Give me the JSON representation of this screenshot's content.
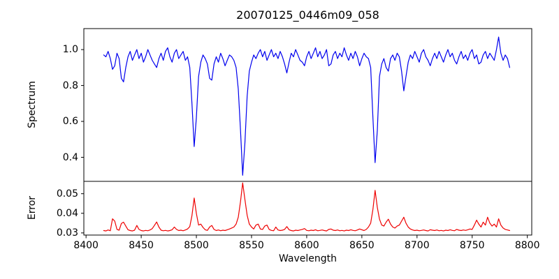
{
  "chart_data": {
    "type": "line",
    "title": "20070125_0446m09_058",
    "xlabel": "Wavelength",
    "xlim": [
      8398,
      8804
    ],
    "grid": false,
    "legend": "none",
    "xticks": [
      8400,
      8450,
      8500,
      8550,
      8600,
      8650,
      8700,
      8750,
      8800
    ],
    "xtick_labels": [
      "8400",
      "8450",
      "8500",
      "8550",
      "8600",
      "8650",
      "8700",
      "8750",
      "8800"
    ],
    "panels": [
      {
        "name": "spectrum",
        "ylabel": "Spectrum",
        "ylim": [
          0.266,
          1.117
        ],
        "yticks": [
          0.4,
          0.6,
          0.8,
          1.0
        ],
        "ytick_labels": [
          "0.4",
          "0.6",
          "0.8",
          "1.0"
        ],
        "color": "#0000ee",
        "x0": 8416,
        "dx": 2,
        "values": [
          0.97,
          0.96,
          0.99,
          0.95,
          0.89,
          0.91,
          0.98,
          0.95,
          0.84,
          0.82,
          0.9,
          0.96,
          0.99,
          0.94,
          0.97,
          1.0,
          0.95,
          0.98,
          0.93,
          0.96,
          1.0,
          0.97,
          0.94,
          0.92,
          0.9,
          0.95,
          0.98,
          0.94,
          0.99,
          1.01,
          0.96,
          0.93,
          0.98,
          1.0,
          0.95,
          0.97,
          0.99,
          0.94,
          0.96,
          0.9,
          0.7,
          0.46,
          0.62,
          0.85,
          0.93,
          0.97,
          0.95,
          0.92,
          0.84,
          0.83,
          0.92,
          0.96,
          0.93,
          0.98,
          0.95,
          0.91,
          0.94,
          0.97,
          0.96,
          0.94,
          0.9,
          0.78,
          0.55,
          0.3,
          0.48,
          0.74,
          0.88,
          0.93,
          0.97,
          0.95,
          0.98,
          1.0,
          0.96,
          0.99,
          0.94,
          0.97,
          1.0,
          0.96,
          0.98,
          0.95,
          0.99,
          0.96,
          0.92,
          0.87,
          0.93,
          0.98,
          0.96,
          1.0,
          0.97,
          0.94,
          0.93,
          0.91,
          0.96,
          0.99,
          0.95,
          0.98,
          1.01,
          0.96,
          0.99,
          0.95,
          0.97,
          1.0,
          0.91,
          0.92,
          0.97,
          0.99,
          0.95,
          0.98,
          0.96,
          1.01,
          0.97,
          0.94,
          0.98,
          0.95,
          0.99,
          0.96,
          0.91,
          0.95,
          0.98,
          0.96,
          0.95,
          0.9,
          0.62,
          0.37,
          0.55,
          0.85,
          0.92,
          0.95,
          0.9,
          0.88,
          0.95,
          0.97,
          0.94,
          0.98,
          0.96,
          0.88,
          0.77,
          0.85,
          0.93,
          0.97,
          0.95,
          0.99,
          0.96,
          0.93,
          0.98,
          1.0,
          0.96,
          0.94,
          0.91,
          0.95,
          0.98,
          0.95,
          0.99,
          0.96,
          0.93,
          0.97,
          1.0,
          0.96,
          0.98,
          0.94,
          0.92,
          0.96,
          0.99,
          0.95,
          0.97,
          0.94,
          0.98,
          1.0,
          0.95,
          0.97,
          0.92,
          0.93,
          0.97,
          0.99,
          0.95,
          0.98,
          0.96,
          0.94,
          1.0,
          1.07,
          0.98,
          0.94,
          0.97,
          0.95,
          0.9
        ]
      },
      {
        "name": "error",
        "ylabel": "Error",
        "ylim": [
          0.0289,
          0.0563
        ],
        "yticks": [
          0.03,
          0.04,
          0.05
        ],
        "ytick_labels": [
          "0.03",
          "0.04",
          "0.05"
        ],
        "color": "#ee0000",
        "x0": 8416,
        "dx": 2,
        "values": [
          0.0312,
          0.031,
          0.0315,
          0.0311,
          0.0372,
          0.036,
          0.0318,
          0.0314,
          0.0348,
          0.0355,
          0.0335,
          0.0316,
          0.0312,
          0.031,
          0.0314,
          0.0338,
          0.0318,
          0.0312,
          0.031,
          0.0313,
          0.0311,
          0.0315,
          0.0322,
          0.0338,
          0.0356,
          0.033,
          0.0314,
          0.0311,
          0.0313,
          0.031,
          0.0312,
          0.0316,
          0.033,
          0.0318,
          0.0312,
          0.0314,
          0.0311,
          0.0315,
          0.032,
          0.0332,
          0.0388,
          0.0478,
          0.04,
          0.034,
          0.0345,
          0.0328,
          0.0316,
          0.0313,
          0.033,
          0.0338,
          0.0318,
          0.0312,
          0.0315,
          0.0311,
          0.0314,
          0.0312,
          0.0316,
          0.032,
          0.0325,
          0.033,
          0.0345,
          0.038,
          0.046,
          0.0555,
          0.047,
          0.039,
          0.0345,
          0.033,
          0.032,
          0.034,
          0.0345,
          0.032,
          0.0318,
          0.0335,
          0.034,
          0.0318,
          0.0313,
          0.0311,
          0.033,
          0.0315,
          0.0312,
          0.0314,
          0.0318,
          0.0332,
          0.0316,
          0.0312,
          0.031,
          0.0314,
          0.0312,
          0.0315,
          0.0318,
          0.0322,
          0.0313,
          0.0311,
          0.0314,
          0.0312,
          0.0316,
          0.0311,
          0.0313,
          0.0315,
          0.0312,
          0.031,
          0.0318,
          0.032,
          0.0314,
          0.0312,
          0.0315,
          0.0311,
          0.0313,
          0.031,
          0.0314,
          0.0312,
          0.0316,
          0.0313,
          0.0311,
          0.0315,
          0.032,
          0.0316,
          0.0312,
          0.0318,
          0.033,
          0.035,
          0.042,
          0.0517,
          0.043,
          0.037,
          0.034,
          0.0335,
          0.0355,
          0.037,
          0.0345,
          0.033,
          0.0325,
          0.0335,
          0.034,
          0.036,
          0.038,
          0.035,
          0.033,
          0.032,
          0.0315,
          0.0312,
          0.0314,
          0.0311,
          0.0313,
          0.0315,
          0.0312,
          0.031,
          0.0316,
          0.0314,
          0.0312,
          0.0315,
          0.0311,
          0.0313,
          0.031,
          0.0314,
          0.0312,
          0.0316,
          0.0313,
          0.0311,
          0.0318,
          0.0314,
          0.0312,
          0.0315,
          0.0313,
          0.0316,
          0.032,
          0.0318,
          0.034,
          0.0365,
          0.0345,
          0.033,
          0.0355,
          0.034,
          0.038,
          0.035,
          0.0335,
          0.0345,
          0.033,
          0.0372,
          0.034,
          0.0325,
          0.0318,
          0.0315,
          0.0312
        ]
      }
    ]
  }
}
